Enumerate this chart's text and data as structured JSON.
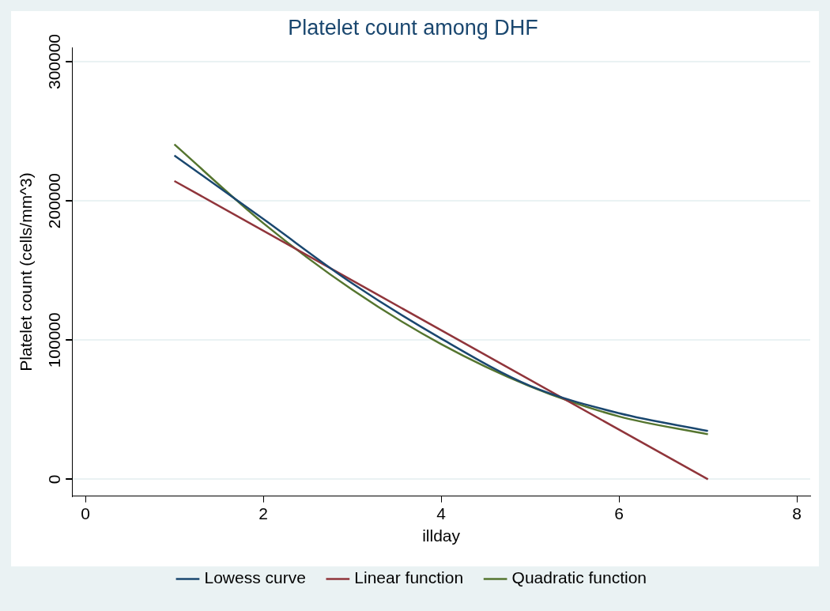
{
  "chart_data": {
    "type": "line",
    "title": "Platelet count among DHF",
    "xlabel": "illday",
    "ylabel": "Platelet count (cells/mm^3)",
    "xlim": [
      -0.15,
      8.15
    ],
    "xticks": [
      0,
      2,
      4,
      6,
      8
    ],
    "ylim": [
      -12000,
      310000
    ],
    "yticks": [
      0,
      100000,
      200000,
      300000
    ],
    "grid": "y",
    "legend": "bottom",
    "marker": "none",
    "line_style": "solid",
    "series": [
      {
        "name": "Lowess curve",
        "color": "#1a476f",
        "x": [
          1,
          2,
          3,
          4,
          5,
          6,
          7
        ],
        "values": [
          232600,
          187000,
          140800,
          101100,
          67200,
          47500,
          34800
        ]
      },
      {
        "name": "Linear function",
        "color": "#90353b",
        "x": [
          1,
          7
        ],
        "values": [
          214300,
          0
        ]
      },
      {
        "name": "Quadratic function",
        "color": "#55752f",
        "x": [
          1,
          2,
          3,
          4,
          5,
          6,
          7
        ],
        "values": [
          240600,
          184000,
          136200,
          97100,
          66800,
          45200,
          32400
        ]
      }
    ]
  }
}
